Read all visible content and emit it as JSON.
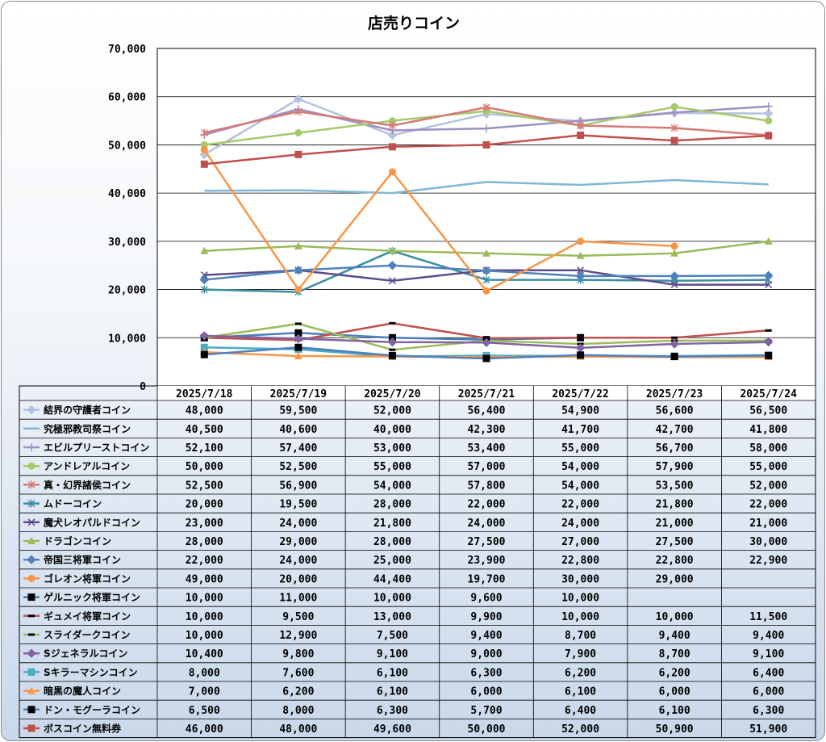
{
  "chart_data": {
    "type": "line",
    "title": "店売りコイン",
    "categories": [
      "2025/7/18",
      "2025/7/19",
      "2025/7/20",
      "2025/7/21",
      "2025/7/22",
      "2025/7/23",
      "2025/7/24"
    ],
    "y_ticks": [
      "0",
      "10,000",
      "20,000",
      "30,000",
      "40,000",
      "50,000",
      "60,000",
      "70,000"
    ],
    "ylim": [
      0,
      70000
    ],
    "grid": true,
    "legend": "data-table-below",
    "series": [
      {
        "name": "結界の守護者コイン",
        "color": "#b3c2dd",
        "marker": "diamond",
        "values": [
          48000,
          59500,
          52000,
          56400,
          54900,
          56600,
          56500
        ],
        "labels": [
          "48,000",
          "59,500",
          "52,000",
          "56,400",
          "54,900",
          "56,600",
          "56,500"
        ]
      },
      {
        "name": "究極邪教司祭コイン",
        "color": "#7fb8d6",
        "marker": "none",
        "values": [
          40500,
          40600,
          40000,
          42300,
          41700,
          42700,
          41800
        ],
        "labels": [
          "40,500",
          "40,600",
          "40,000",
          "42,300",
          "41,700",
          "42,700",
          "41,800"
        ]
      },
      {
        "name": "エビルプリーストコイン",
        "color": "#a08fc3",
        "marker": "plus",
        "values": [
          52100,
          57400,
          53000,
          53400,
          55000,
          56700,
          58000
        ],
        "labels": [
          "52,100",
          "57,400",
          "53,000",
          "53,400",
          "55,000",
          "56,700",
          "58,000"
        ]
      },
      {
        "name": "アンドレアルコイン",
        "color": "#a6c96a",
        "marker": "circle",
        "values": [
          50000,
          52500,
          55000,
          57000,
          54000,
          57900,
          55000
        ],
        "labels": [
          "50,000",
          "52,500",
          "55,000",
          "57,000",
          "54,000",
          "57,900",
          "55,000"
        ]
      },
      {
        "name": "真・幻界諸侯コイン",
        "color": "#d47b79",
        "marker": "star",
        "values": [
          52500,
          56900,
          54000,
          57800,
          54000,
          53500,
          52000
        ],
        "labels": [
          "52,500",
          "56,900",
          "54,000",
          "57,800",
          "54,000",
          "53,500",
          "52,000"
        ]
      },
      {
        "name": "ムドーコイン",
        "color": "#3b8ea0",
        "marker": "star",
        "values": [
          20000,
          19500,
          28000,
          22000,
          22000,
          21800,
          22000
        ],
        "labels": [
          "20,000",
          "19,500",
          "28,000",
          "22,000",
          "22,000",
          "21,800",
          "22,000"
        ]
      },
      {
        "name": "魔犬レオパルドコイン",
        "color": "#5e4b8a",
        "marker": "x",
        "values": [
          23000,
          24000,
          21800,
          24000,
          24000,
          21000,
          21000
        ],
        "labels": [
          "23,000",
          "24,000",
          "21,800",
          "24,000",
          "24,000",
          "21,000",
          "21,000"
        ]
      },
      {
        "name": "ドラゴンコイン",
        "color": "#9bbb59",
        "marker": "triangle",
        "values": [
          28000,
          29000,
          28000,
          27500,
          27000,
          27500,
          30000
        ],
        "labels": [
          "28,000",
          "29,000",
          "28,000",
          "27,500",
          "27,000",
          "27,500",
          "30,000"
        ]
      },
      {
        "name": "帝国三将軍コイン",
        "color": "#4f81bd",
        "marker": "diamond",
        "values": [
          22000,
          24000,
          25000,
          23900,
          22800,
          22800,
          22900
        ],
        "labels": [
          "22,000",
          "24,000",
          "25,000",
          "23,900",
          "22,800",
          "22,800",
          "22,900"
        ]
      },
      {
        "name": "ゴレオン将軍コイン",
        "color": "#f79646",
        "marker": "circle",
        "values": [
          49000,
          20000,
          44400,
          19700,
          30000,
          29000,
          null
        ],
        "labels": [
          "49,000",
          "20,000",
          "44,400",
          "19,700",
          "30,000",
          "29,000",
          ""
        ]
      },
      {
        "name": "ゲルニック将軍コイン",
        "color": "#4a7ebb",
        "marker": "square-black",
        "values": [
          10000,
          11000,
          10000,
          9600,
          10000,
          null,
          null
        ],
        "labels": [
          "10,000",
          "11,000",
          "10,000",
          "9,600",
          "10,000",
          "",
          ""
        ]
      },
      {
        "name": "ギュメイ将軍コイン",
        "color": "#c0504d",
        "marker": "dash-black",
        "values": [
          10000,
          9500,
          13000,
          9900,
          10000,
          10000,
          11500
        ],
        "labels": [
          "10,000",
          "9,500",
          "13,000",
          "9,900",
          "10,000",
          "10,000",
          "11,500"
        ]
      },
      {
        "name": "スライダークコイン",
        "color": "#9bbb59",
        "marker": "dash-black",
        "values": [
          10000,
          12900,
          7500,
          9400,
          8700,
          9400,
          9400
        ],
        "labels": [
          "10,000",
          "12,900",
          "7,500",
          "9,400",
          "8,700",
          "9,400",
          "9,400"
        ]
      },
      {
        "name": "Sジェネラルコイン",
        "color": "#8064a2",
        "marker": "diamond",
        "values": [
          10400,
          9800,
          9100,
          9000,
          7900,
          8700,
          9100
        ],
        "labels": [
          "10,400",
          "9,800",
          "9,100",
          "9,000",
          "7,900",
          "8,700",
          "9,100"
        ]
      },
      {
        "name": "Sキラーマシンコイン",
        "color": "#4bacc6",
        "marker": "square",
        "values": [
          8000,
          7600,
          6100,
          6300,
          6200,
          6200,
          6400
        ],
        "labels": [
          "8,000",
          "7,600",
          "6,100",
          "6,300",
          "6,200",
          "6,200",
          "6,400"
        ]
      },
      {
        "name": "暗黒の魔人コイン",
        "color": "#f79646",
        "marker": "triangle",
        "values": [
          7000,
          6200,
          6100,
          6000,
          6100,
          6000,
          6000
        ],
        "labels": [
          "7,000",
          "6,200",
          "6,100",
          "6,000",
          "6,100",
          "6,000",
          "6,000"
        ]
      },
      {
        "name": "ドン・モグーラコイン",
        "color": "#4f81bd",
        "marker": "square-black",
        "values": [
          6500,
          8000,
          6300,
          5700,
          6400,
          6100,
          6300
        ],
        "labels": [
          "6,500",
          "8,000",
          "6,300",
          "5,700",
          "6,400",
          "6,100",
          "6,300"
        ]
      },
      {
        "name": "ボスコイン無料券",
        "color": "#c0504d",
        "marker": "square",
        "values": [
          46000,
          48000,
          49600,
          50000,
          52000,
          50900,
          51900
        ],
        "labels": [
          "46,000",
          "48,000",
          "49,600",
          "50,000",
          "52,000",
          "50,900",
          "51,900"
        ]
      }
    ]
  }
}
